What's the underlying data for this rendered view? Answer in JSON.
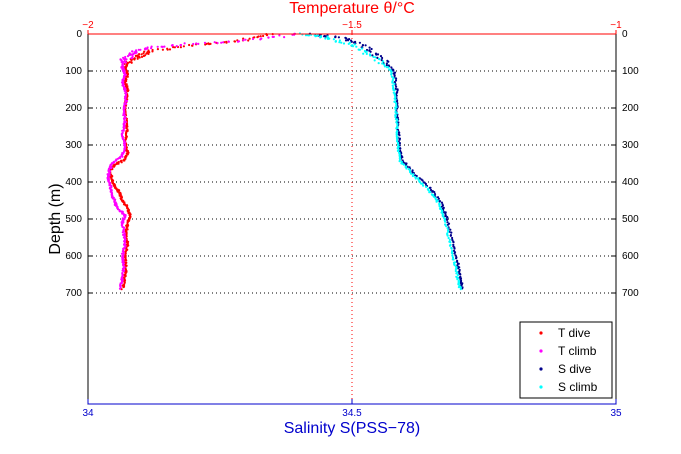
{
  "chart_data": {
    "type": "scatter",
    "title": "",
    "top_axis": {
      "label": "Temperature θ/°C",
      "range": [
        -2,
        -1
      ],
      "ticks": [
        "−2",
        "−1.5",
        "−1"
      ],
      "color": "#ff0000"
    },
    "bottom_axis": {
      "label": "Salinity S(PSS−78)",
      "range": [
        34,
        35
      ],
      "ticks": [
        "34",
        "34.5",
        "35"
      ],
      "color": "#0000cc"
    },
    "ylabel": "Depth (m)",
    "ylim": [
      1000,
      0
    ],
    "yticks": [
      "0",
      "100",
      "200",
      "300",
      "400",
      "500",
      "600",
      "700"
    ],
    "ytick_values": [
      0,
      100,
      200,
      300,
      400,
      500,
      600,
      700
    ],
    "grid": "dotted",
    "legend_position": "bottom-right",
    "series": [
      {
        "name": "T dive",
        "color": "#ff0000",
        "axis": "top",
        "points": [
          [
            -1.65,
            0
          ],
          [
            -1.72,
            20
          ],
          [
            -1.8,
            30
          ],
          [
            -1.88,
            45
          ],
          [
            -1.9,
            60
          ],
          [
            -1.92,
            75
          ],
          [
            -1.93,
            90
          ],
          [
            -1.925,
            110
          ],
          [
            -1.93,
            130
          ],
          [
            -1.925,
            150
          ],
          [
            -1.928,
            180
          ],
          [
            -1.93,
            200
          ],
          [
            -1.928,
            230
          ],
          [
            -1.925,
            260
          ],
          [
            -1.93,
            290
          ],
          [
            -1.925,
            320
          ],
          [
            -1.93,
            340
          ],
          [
            -1.95,
            355
          ],
          [
            -1.96,
            370
          ],
          [
            -1.955,
            390
          ],
          [
            -1.95,
            410
          ],
          [
            -1.94,
            430
          ],
          [
            -1.935,
            450
          ],
          [
            -1.925,
            470
          ],
          [
            -1.92,
            490
          ],
          [
            -1.925,
            510
          ],
          [
            -1.928,
            540
          ],
          [
            -1.925,
            570
          ],
          [
            -1.93,
            600
          ],
          [
            -1.928,
            630
          ],
          [
            -1.93,
            660
          ],
          [
            -1.935,
            690
          ]
        ]
      },
      {
        "name": "T climb",
        "color": "#ff00ff",
        "axis": "top",
        "points": [
          [
            -1.6,
            0
          ],
          [
            -1.7,
            18
          ],
          [
            -1.82,
            28
          ],
          [
            -1.9,
            40
          ],
          [
            -1.92,
            55
          ],
          [
            -1.93,
            70
          ],
          [
            -1.935,
            90
          ],
          [
            -1.93,
            110
          ],
          [
            -1.935,
            130
          ],
          [
            -1.93,
            150
          ],
          [
            -1.928,
            180
          ],
          [
            -1.932,
            210
          ],
          [
            -1.93,
            240
          ],
          [
            -1.935,
            270
          ],
          [
            -1.93,
            300
          ],
          [
            -1.935,
            330
          ],
          [
            -1.955,
            350
          ],
          [
            -1.96,
            370
          ],
          [
            -1.962,
            390
          ],
          [
            -1.958,
            410
          ],
          [
            -1.955,
            430
          ],
          [
            -1.95,
            450
          ],
          [
            -1.945,
            470
          ],
          [
            -1.93,
            490
          ],
          [
            -1.935,
            510
          ],
          [
            -1.932,
            540
          ],
          [
            -1.93,
            570
          ],
          [
            -1.935,
            600
          ],
          [
            -1.932,
            630
          ],
          [
            -1.935,
            660
          ],
          [
            -1.94,
            690
          ]
        ]
      },
      {
        "name": "S dive",
        "color": "#00008b",
        "axis": "bottom",
        "points": [
          [
            34.42,
            0
          ],
          [
            34.48,
            10
          ],
          [
            34.52,
            30
          ],
          [
            34.55,
            60
          ],
          [
            34.58,
            100
          ],
          [
            34.585,
            150
          ],
          [
            34.585,
            200
          ],
          [
            34.587,
            250
          ],
          [
            34.59,
            300
          ],
          [
            34.595,
            340
          ],
          [
            34.62,
            380
          ],
          [
            34.65,
            420
          ],
          [
            34.67,
            460
          ],
          [
            34.68,
            500
          ],
          [
            34.69,
            560
          ],
          [
            34.7,
            620
          ],
          [
            34.705,
            660
          ],
          [
            34.71,
            690
          ]
        ]
      },
      {
        "name": "S climb",
        "color": "#00ffff",
        "axis": "bottom",
        "points": [
          [
            34.41,
            0
          ],
          [
            34.45,
            10
          ],
          [
            34.5,
            30
          ],
          [
            34.54,
            60
          ],
          [
            34.575,
            100
          ],
          [
            34.58,
            150
          ],
          [
            34.583,
            200
          ],
          [
            34.585,
            250
          ],
          [
            34.587,
            300
          ],
          [
            34.59,
            340
          ],
          [
            34.615,
            380
          ],
          [
            34.645,
            420
          ],
          [
            34.665,
            460
          ],
          [
            34.675,
            500
          ],
          [
            34.685,
            560
          ],
          [
            34.695,
            620
          ],
          [
            34.7,
            660
          ],
          [
            34.705,
            690
          ]
        ]
      }
    ]
  }
}
